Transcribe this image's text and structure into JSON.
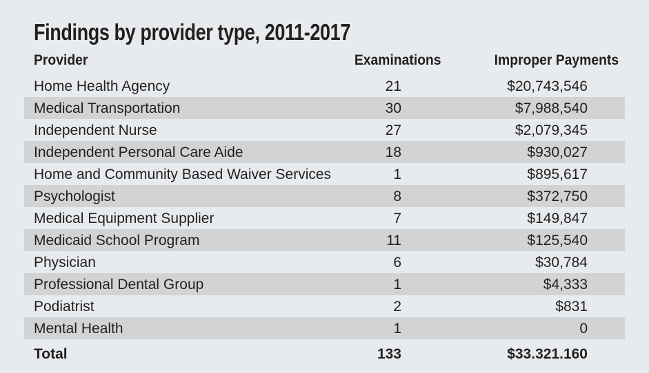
{
  "chart_data": {
    "type": "table",
    "title": "Findings by provider type, 2011-2017",
    "columns": [
      "Provider",
      "Examinations",
      "Improper Payments"
    ],
    "rows": [
      [
        "Home Health Agency",
        "21",
        "$20,743,546"
      ],
      [
        "Medical Transportation",
        "30",
        "$7,988,540"
      ],
      [
        "Independent Nurse",
        "27",
        "$2,079,345"
      ],
      [
        "Independent Personal Care Aide",
        "18",
        "$930,027"
      ],
      [
        "Home and Community Based Waiver Services",
        "1",
        "$895,617"
      ],
      [
        "Psychologist",
        "8",
        "$372,750"
      ],
      [
        "Medical Equipment Supplier",
        "7",
        "$149,847"
      ],
      [
        "Medicaid School Program",
        "11",
        "$125,540"
      ],
      [
        "Physician",
        "6",
        "$30,784"
      ],
      [
        "Professional Dental Group",
        "1",
        "$4,333"
      ],
      [
        "Podiatrist",
        "2",
        "$831"
      ],
      [
        "Mental Health",
        "1",
        "0"
      ]
    ],
    "total": [
      "Total",
      "133",
      "$33.321.160"
    ],
    "colors": {
      "background": "#e8ebed",
      "stripe": "#d2d3d5",
      "text": "#231f20"
    }
  }
}
